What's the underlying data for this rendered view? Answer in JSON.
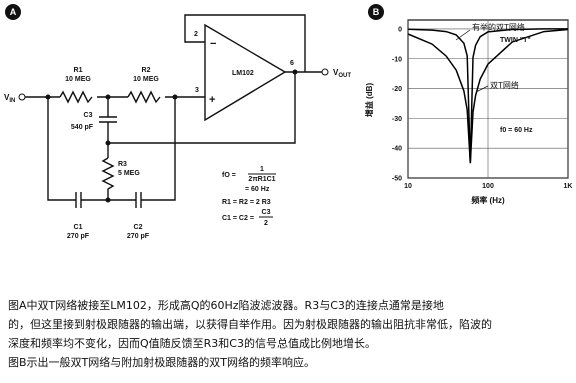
{
  "panel_a": {
    "badge": "A",
    "vin": {
      "main": "V",
      "sub": "IN"
    },
    "vout": {
      "main": "V",
      "sub": "OUT"
    },
    "r1": [
      "R1",
      "10 MEG"
    ],
    "r2": [
      "R2",
      "10 MEG"
    ],
    "r3": [
      "R3",
      "5 MEG"
    ],
    "c1": [
      "C1",
      "270 pF"
    ],
    "c2": [
      "C2",
      "270 pF"
    ],
    "c3": [
      "C3",
      "540 pF"
    ],
    "opamp": "LM102",
    "pins": [
      "2",
      "3",
      "6"
    ],
    "formula": {
      "f0": "fO =",
      "num": "1",
      "den": "2πR1C1",
      "result": "= 60 Hz",
      "r_rel": "R1 = R2 = 2 R3",
      "c_rel": "C1 = C2 =",
      "c_num": "C3",
      "c_den": "2"
    }
  },
  "panel_b": {
    "badge": "B",
    "chart_data": {
      "type": "line",
      "xlabel": "频率 (Hz)",
      "ylabel": "增益 (dB)",
      "x": [
        10,
        20,
        30,
        40,
        50,
        55,
        60,
        65,
        70,
        80,
        100,
        200,
        500,
        1000
      ],
      "series": [
        {
          "name": "双T网络",
          "color": "#000000",
          "values": [
            -1.7,
            -5.1,
            -9.1,
            -13.8,
            -20.8,
            -27.2,
            -45,
            -27.9,
            -22.3,
            -16.8,
            -11.8,
            -4.4,
            -0.9,
            -0.2
          ]
        },
        {
          "name": "有举的双T网络",
          "color": "#000000",
          "values": [
            -0.1,
            -0.4,
            -0.9,
            -2,
            -4.8,
            -9,
            -45,
            -9.5,
            -5.5,
            -2.6,
            -1,
            -0.2,
            0,
            0
          ]
        }
      ],
      "annotations": [
        "TWIN \"T\"",
        "f0 = 60 Hz"
      ],
      "xlim": [
        10,
        1000
      ],
      "xticks": [
        10,
        100,
        {
          "value": 1000,
          "label": "1K"
        }
      ],
      "ylim": [
        -50,
        3
      ],
      "yticks": [
        0,
        -10,
        -20,
        -30,
        -40,
        -50
      ],
      "log_x": true,
      "grid": true
    }
  },
  "caption": [
    "图A中双T网络被接至LM102，形成高Q的60Hz陷波滤波器。R3与C3的连接点通常是接地",
    "的，但这里接到射极跟随器的输出端，以获得自举作用。因为射极跟随器的输出阻抗非常低，陷波的",
    "深度和频率均不变化，因而Q值随反馈至R3和C3的信号总值成比例地增长。",
    "图B示出一般双T网络与附加射极跟随器的双T网络的频率响应。"
  ]
}
